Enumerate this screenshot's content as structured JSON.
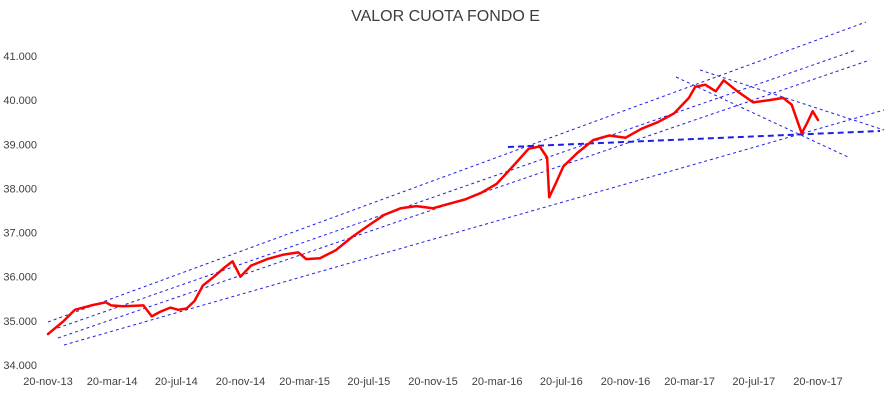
{
  "chart_data": {
    "type": "line",
    "title": "VALOR CUOTA FONDO E",
    "xlabel": "",
    "ylabel": "",
    "x_ticks": [
      "20-nov-13",
      "20-mar-14",
      "20-jul-14",
      "20-nov-14",
      "20-mar-15",
      "20-jul-15",
      "20-nov-15",
      "20-mar-16",
      "20-jul-16",
      "20-nov-16",
      "20-mar-17",
      "20-jul-17",
      "20-nov-17"
    ],
    "y_ticks": [
      "34.000",
      "35.000",
      "36.000",
      "37.000",
      "38.000",
      "39.000",
      "40.000",
      "41.000"
    ],
    "ylim": [
      34000,
      41000
    ],
    "xlim": [
      "2013-11-20",
      "2017-11-20"
    ],
    "grid": false,
    "series": [
      {
        "color": "#ff0000",
        "x": [
          "2013-11-20",
          "2013-12-20",
          "2014-01-10",
          "2014-02-10",
          "2014-03-10",
          "2014-03-20",
          "2014-04-10",
          "2014-05-20",
          "2014-06-05",
          "2014-06-20",
          "2014-07-10",
          "2014-07-25",
          "2014-08-10",
          "2014-08-25",
          "2014-09-10",
          "2014-10-01",
          "2014-10-20",
          "2014-11-05",
          "2014-11-20",
          "2014-12-10",
          "2015-01-10",
          "2015-02-10",
          "2015-03-10",
          "2015-03-25",
          "2015-04-20",
          "2015-05-20",
          "2015-06-20",
          "2015-07-20",
          "2015-08-20",
          "2015-09-20",
          "2015-10-20",
          "2015-11-20",
          "2015-12-20",
          "2016-01-20",
          "2016-02-20",
          "2016-03-20",
          "2016-04-20",
          "2016-05-20",
          "2016-06-10",
          "2016-06-24",
          "2016-06-28",
          "2016-07-10",
          "2016-07-25",
          "2016-08-20",
          "2016-09-20",
          "2016-10-20",
          "2016-11-20",
          "2016-12-20",
          "2017-01-20",
          "2017-02-20",
          "2017-03-20",
          "2017-04-01",
          "2017-04-20",
          "2017-05-10",
          "2017-05-25",
          "2017-06-20",
          "2017-07-20",
          "2017-08-20",
          "2017-09-15",
          "2017-10-01",
          "2017-10-20",
          "2017-10-31",
          "2017-11-10",
          "2017-11-20"
        ],
        "values": [
          34700,
          35000,
          35250,
          35350,
          35420,
          35350,
          35330,
          35350,
          35100,
          35200,
          35300,
          35250,
          35280,
          35450,
          35800,
          36000,
          36200,
          36350,
          36000,
          36250,
          36400,
          36500,
          36550,
          36400,
          36420,
          36600,
          36900,
          37150,
          37400,
          37550,
          37600,
          37550,
          37650,
          37750,
          37900,
          38100,
          38500,
          38900,
          38950,
          38700,
          37800,
          38100,
          38500,
          38800,
          39100,
          39200,
          39150,
          39350,
          39500,
          39700,
          40050,
          40300,
          40350,
          40200,
          40450,
          40200,
          39950,
          40000,
          40050,
          39900,
          39250,
          39500,
          39750,
          39550
        ]
      }
    ]
  }
}
